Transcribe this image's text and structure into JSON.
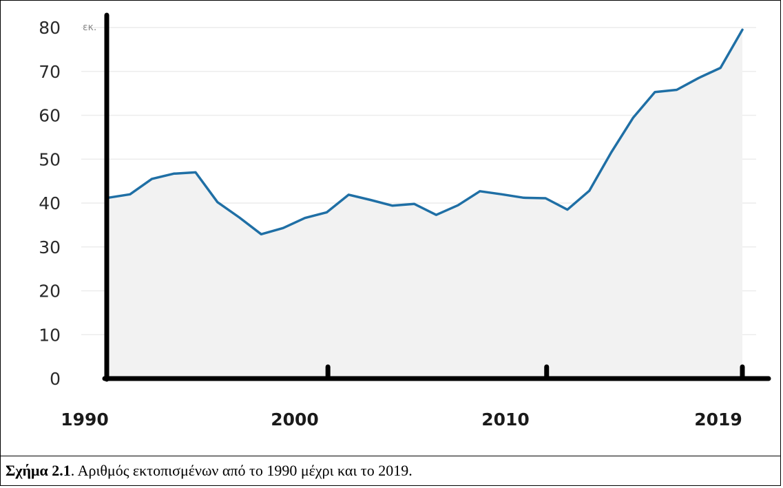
{
  "caption": {
    "label": "Σχήμα 2.1",
    "text": ". Αριθμός εκτοπισμένων από το 1990 μέχρι και το 2019."
  },
  "chart_data": {
    "type": "area",
    "unit_label": "εκ.",
    "ylim": [
      0,
      80
    ],
    "yticks": [
      0,
      10,
      20,
      30,
      40,
      50,
      60,
      70,
      80
    ],
    "xlim": [
      1990,
      2019
    ],
    "xticks": [
      1990,
      2000,
      2010,
      2019
    ],
    "grid": true,
    "line_color": "#1f6fa5",
    "fill_color": "#f2f2f2",
    "x": [
      1990,
      1991,
      1992,
      1993,
      1994,
      1995,
      1996,
      1997,
      1998,
      1999,
      2000,
      2001,
      2002,
      2003,
      2004,
      2005,
      2006,
      2007,
      2008,
      2009,
      2010,
      2011,
      2012,
      2013,
      2014,
      2015,
      2016,
      2017,
      2018,
      2019
    ],
    "values": [
      41.2,
      42,
      45.5,
      46.7,
      47,
      40.2,
      36.7,
      32.9,
      34.3,
      36.6,
      37.9,
      41.9,
      40.7,
      39.4,
      39.8,
      37.3,
      39.5,
      42.7,
      42,
      41.2,
      41.1,
      38.5,
      42.8,
      51.5,
      59.4,
      65.3,
      65.8,
      68.5,
      70.8,
      79.5
    ]
  }
}
